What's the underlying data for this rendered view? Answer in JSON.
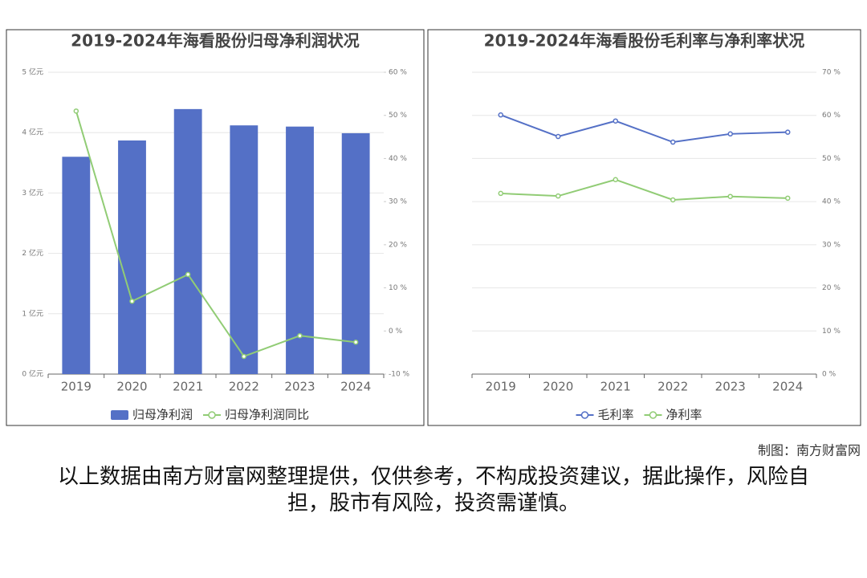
{
  "chart_data": [
    {
      "type": "bar",
      "title": "2019-2024年海看股份归母净利润状况",
      "categories": [
        "2019",
        "2020",
        "2021",
        "2022",
        "2023",
        "2024"
      ],
      "series": [
        {
          "name": "归母净利润",
          "type": "bar",
          "color": "#5470c6",
          "values": [
            3.6,
            3.87,
            4.39,
            4.12,
            4.1,
            3.99
          ]
        },
        {
          "name": "归母净利润同比",
          "type": "line",
          "axis": "y2",
          "color": "#91cc75",
          "values": [
            51,
            6.9,
            13.1,
            -5.9,
            -1.1,
            -2.6
          ]
        }
      ],
      "ylim": [
        0,
        5
      ],
      "yticks": [
        {
          "value": 0,
          "label": "0 亿元"
        },
        {
          "value": 1,
          "label": "1 亿元"
        },
        {
          "value": 2,
          "label": "2 亿元"
        },
        {
          "value": 3,
          "label": "3 亿元"
        },
        {
          "value": 4,
          "label": "4 亿元"
        },
        {
          "value": 5,
          "label": "5 亿元"
        }
      ],
      "y2lim": [
        -10,
        60
      ],
      "y2ticks": [
        {
          "value": -10,
          "label": "-10 %"
        },
        {
          "value": 0,
          "label": "0 %"
        },
        {
          "value": 10,
          "label": "10 %"
        },
        {
          "value": 20,
          "label": "20 %"
        },
        {
          "value": 30,
          "label": "30 %"
        },
        {
          "value": 40,
          "label": "40 %"
        },
        {
          "value": 50,
          "label": "50 %"
        },
        {
          "value": 60,
          "label": "60 %"
        }
      ],
      "grid": true,
      "legend": "bottom"
    },
    {
      "type": "line",
      "title": "2019-2024年海看股份毛利率与净利率状况",
      "categories": [
        "2019",
        "2020",
        "2021",
        "2022",
        "2023",
        "2024"
      ],
      "series": [
        {
          "name": "毛利率",
          "color": "#5470c6",
          "values": [
            60.1,
            55.1,
            58.7,
            53.8,
            55.7,
            56.1
          ]
        },
        {
          "name": "净利率",
          "color": "#91cc75",
          "values": [
            41.9,
            41.3,
            45.1,
            40.4,
            41.2,
            40.8
          ]
        }
      ],
      "ylim": [
        0,
        70
      ],
      "yticks": [
        {
          "value": 0,
          "label": "0 %"
        },
        {
          "value": 10,
          "label": "10 %"
        },
        {
          "value": 20,
          "label": "20 %"
        },
        {
          "value": 30,
          "label": "30 %"
        },
        {
          "value": 40,
          "label": "40 %"
        },
        {
          "value": 50,
          "label": "50 %"
        },
        {
          "value": 60,
          "label": "60 %"
        },
        {
          "value": 70,
          "label": "70 %"
        }
      ],
      "yaxis_side": "right",
      "grid": true,
      "legend": "bottom"
    }
  ],
  "credit": "制图：南方财富网",
  "disclaimer": "以上数据由南方财富网整理提供，仅供参考，不构成投资建议，据此操作，风险自担，股市有风险，投资需谨慎。"
}
